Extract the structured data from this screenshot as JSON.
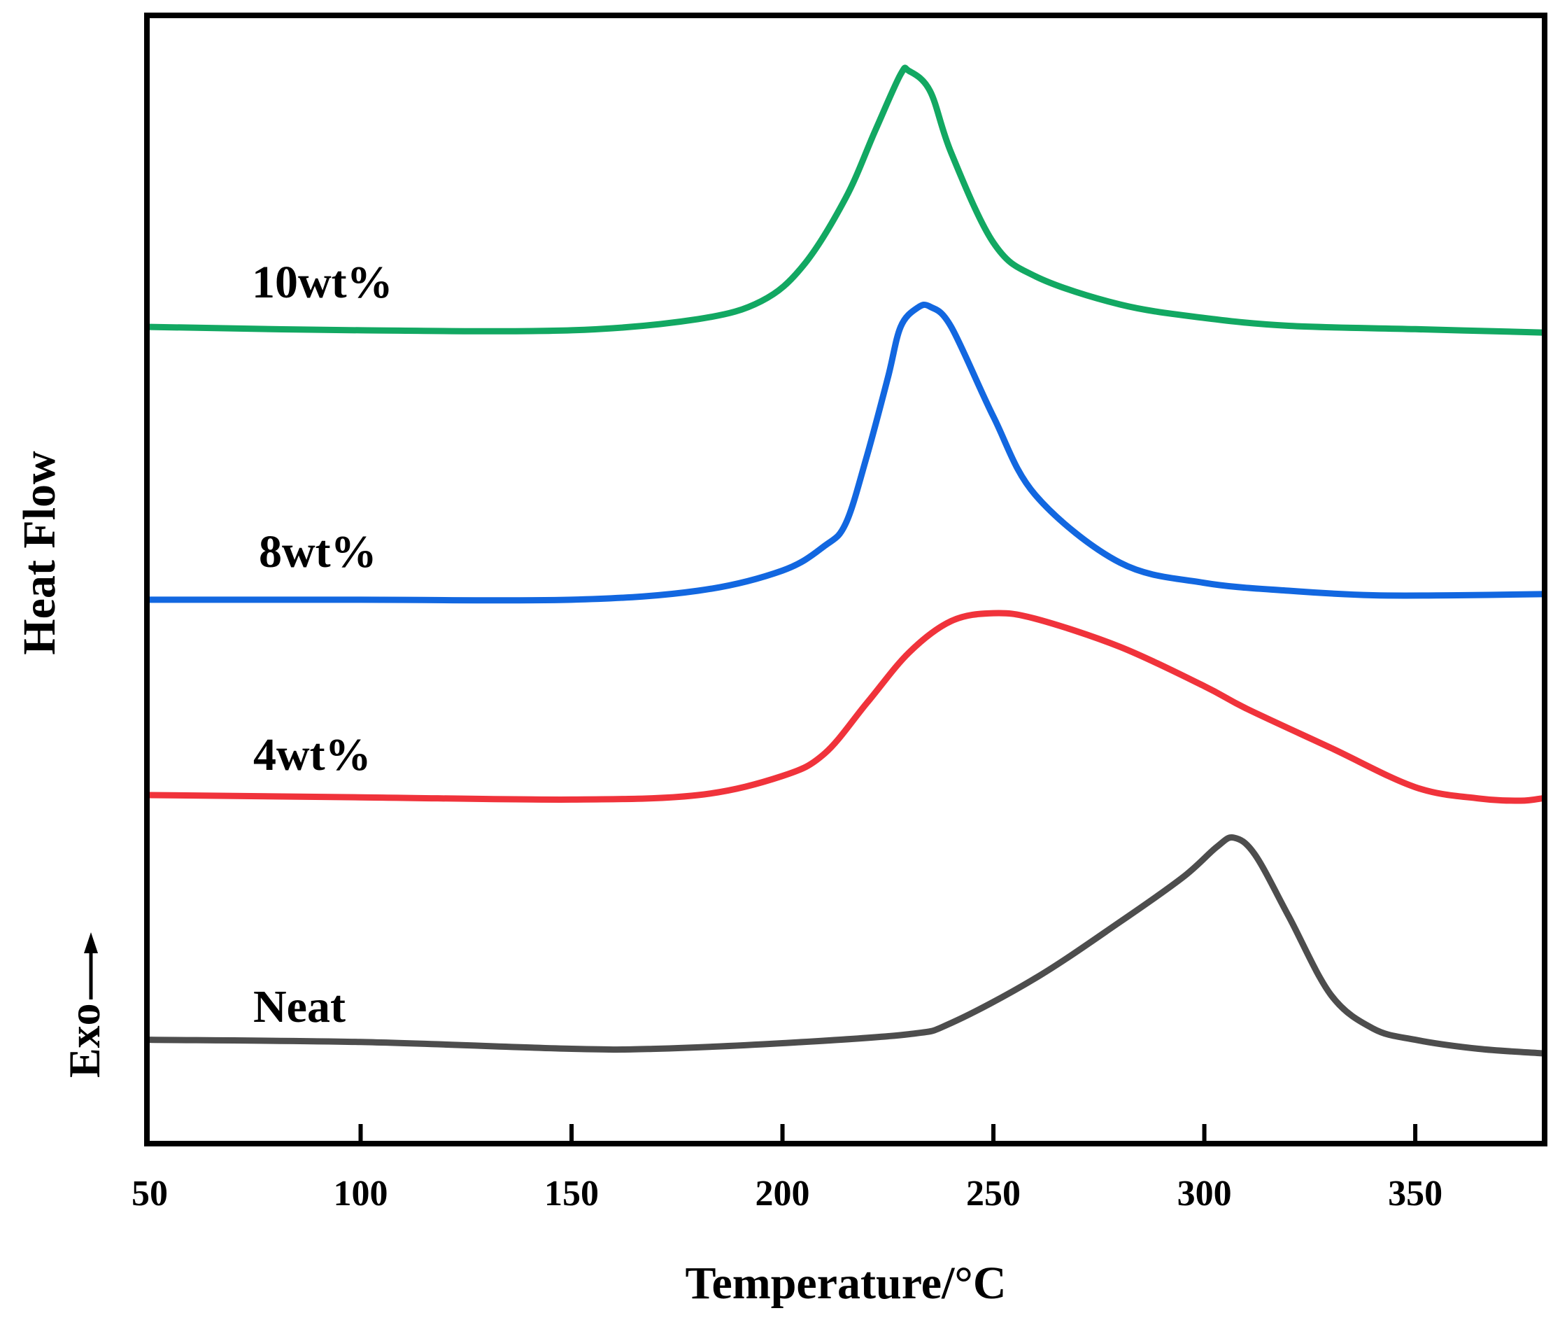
{
  "chart_data": {
    "type": "line",
    "title": "",
    "xlabel": "Temperature/°C",
    "ylabel": "Heat Flow",
    "direction_label": "Exo",
    "xlim": [
      50,
      380
    ],
    "ylim": [
      0,
      1
    ],
    "x_ticks": [
      50,
      100,
      150,
      200,
      250,
      300,
      350
    ],
    "y_ticks_shown": false,
    "legend": "inline labels",
    "series": [
      {
        "name": "Neat",
        "color": "#4d4d4d",
        "x": [
          50,
          100,
          150,
          170,
          200,
          230,
          240,
          260,
          280,
          295,
          303,
          307,
          312,
          320,
          330,
          340,
          350,
          365,
          380
        ],
        "y": [
          0.09,
          0.088,
          0.082,
          0.082,
          0.087,
          0.095,
          0.105,
          0.145,
          0.195,
          0.235,
          0.262,
          0.27,
          0.255,
          0.2,
          0.13,
          0.1,
          0.09,
          0.082,
          0.078
        ]
      },
      {
        "name": "4wt%",
        "color": "#f0333b",
        "x": [
          50,
          100,
          150,
          180,
          200,
          210,
          220,
          230,
          240,
          250,
          260,
          280,
          300,
          310,
          330,
          350,
          365,
          375,
          380
        ],
        "y": [
          0.308,
          0.306,
          0.304,
          0.308,
          0.325,
          0.345,
          0.39,
          0.435,
          0.463,
          0.47,
          0.465,
          0.44,
          0.405,
          0.385,
          0.35,
          0.315,
          0.305,
          0.303,
          0.305
        ]
      },
      {
        "name": "8wt%",
        "color": "#1267e0",
        "x": [
          50,
          100,
          150,
          180,
          200,
          210,
          215,
          220,
          225,
          228,
          232,
          235,
          240,
          250,
          260,
          280,
          300,
          320,
          340,
          360,
          380
        ],
        "y": [
          0.482,
          0.482,
          0.482,
          0.49,
          0.508,
          0.53,
          0.55,
          0.61,
          0.68,
          0.725,
          0.742,
          0.743,
          0.725,
          0.645,
          0.575,
          0.515,
          0.497,
          0.49,
          0.486,
          0.486,
          0.487
        ]
      },
      {
        "name": "10wt%",
        "color": "#12a862",
        "x": [
          50,
          100,
          150,
          180,
          195,
          205,
          215,
          222,
          228,
          230,
          235,
          240,
          250,
          260,
          280,
          300,
          320,
          350,
          380
        ],
        "y": [
          0.725,
          0.722,
          0.722,
          0.732,
          0.748,
          0.78,
          0.84,
          0.9,
          0.95,
          0.953,
          0.935,
          0.88,
          0.8,
          0.77,
          0.745,
          0.733,
          0.726,
          0.723,
          0.72
        ]
      }
    ]
  }
}
